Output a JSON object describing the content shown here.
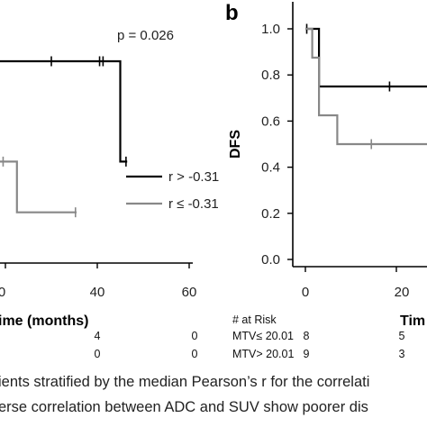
{
  "chart_data": [
    {
      "panel": "",
      "type": "line",
      "annotation": "p = 0.026",
      "xlabel": "ime (months)",
      "ylabel": "",
      "xlim": [
        -1,
        62
      ],
      "ylim": [
        -0.02,
        1.0
      ],
      "x_ticks": [
        "0",
        "40",
        "60"
      ],
      "grid": false,
      "legend_position": "right",
      "series": [
        {
          "name": "r > -0.31",
          "color": "#000000",
          "steps": [
            [
              -5,
              0.875
            ],
            [
              50,
              0.875
            ],
            [
              50,
              0.44
            ],
            [
              53,
              0.44
            ]
          ],
          "censored": [
            [
              20,
              0.875
            ],
            [
              41,
              0.875
            ],
            [
              42.5,
              0.875
            ],
            [
              52.5,
              0.44
            ]
          ]
        },
        {
          "name": "r ≤ -0.31",
          "color": "#888888",
          "steps": [
            [
              -5,
              0.44
            ],
            [
              5,
              0.44
            ],
            [
              5,
              0.22
            ],
            [
              31,
              0.22
            ]
          ],
          "censored": [
            [
              -1,
              0.44
            ],
            [
              30.5,
              0.22
            ]
          ]
        }
      ],
      "risk_table": [
        {
          "values": [
            "4",
            "0"
          ]
        },
        {
          "values": [
            "0",
            "0"
          ]
        }
      ]
    },
    {
      "panel": "b",
      "type": "line",
      "xlabel": "Tim",
      "ylabel": "DFS",
      "xlim": [
        -4,
        42
      ],
      "ylim": [
        -0.02,
        1.05
      ],
      "y_ticks": [
        "1.0",
        "0.8",
        "0.6",
        "0.4",
        "0.2",
        "0.0"
      ],
      "x_ticks": [
        "0",
        "20"
      ],
      "grid": false,
      "series": [
        {
          "name": "",
          "color": "#000000",
          "steps": [
            [
              0,
              1.0
            ],
            [
              3,
              1.0
            ],
            [
              3,
              0.75
            ],
            [
              40,
              0.75
            ]
          ],
          "censored": [
            [
              0.3,
              1.0
            ],
            [
              18.5,
              0.75
            ]
          ]
        },
        {
          "name": "",
          "color": "#888888",
          "steps": [
            [
              0,
              1.0
            ],
            [
              1.5,
              1.0
            ],
            [
              1.5,
              0.875
            ],
            [
              3,
              0.875
            ],
            [
              3,
              0.625
            ],
            [
              7,
              0.625
            ],
            [
              7,
              0.5
            ],
            [
              40,
              0.5
            ]
          ],
          "censored": [
            [
              14.5,
              0.5
            ],
            [
              37,
              0.5
            ]
          ]
        }
      ],
      "risk_table": {
        "header": "# at Risk",
        "rows": [
          {
            "label": "MTV≤ 20.01",
            "values": [
              "8",
              "5"
            ]
          },
          {
            "label": "MTV> 20.01",
            "values": [
              "9",
              "3"
            ]
          }
        ]
      }
    }
  ],
  "caption": {
    "line1": "ients stratified by the median Pearson’s r for the correlati",
    "line2": "erse correlation between ADC and SUV show poorer dis"
  }
}
